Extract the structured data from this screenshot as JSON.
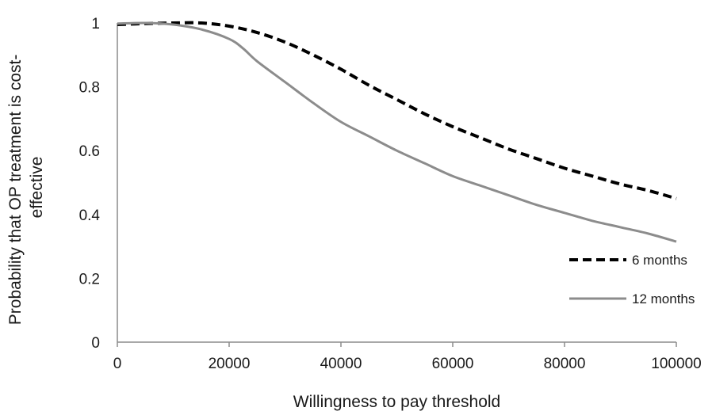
{
  "chart_data": {
    "type": "line",
    "title": "",
    "xlabel": "Willingness to pay threshold",
    "ylabel_lines": [
      "Probability that OP treatment is cost-",
      "effective"
    ],
    "xlim": [
      0,
      100000
    ],
    "ylim": [
      0,
      1
    ],
    "x_ticks": [
      0,
      20000,
      40000,
      60000,
      80000,
      100000
    ],
    "x_tick_labels": [
      "0",
      "20000",
      "40000",
      "60000",
      "80000",
      "100000"
    ],
    "y_ticks": [
      0,
      0.2,
      0.4,
      0.6,
      0.8,
      1
    ],
    "y_tick_labels": [
      "0",
      "0.2",
      "0.4",
      "0.6",
      "0.8",
      "1"
    ],
    "grid": false,
    "legend_position": "bottom-right",
    "series": [
      {
        "name": "6 months",
        "color": "#000000",
        "style": "dashed",
        "x": [
          0,
          5000,
          10000,
          15000,
          20000,
          25000,
          30000,
          35000,
          40000,
          45000,
          50000,
          55000,
          60000,
          65000,
          70000,
          75000,
          80000,
          85000,
          90000,
          95000,
          100000
        ],
        "y": [
          0.995,
          0.998,
          1.0,
          1.0,
          0.99,
          0.97,
          0.94,
          0.9,
          0.855,
          0.805,
          0.76,
          0.715,
          0.675,
          0.64,
          0.605,
          0.575,
          0.545,
          0.52,
          0.495,
          0.475,
          0.45
        ]
      },
      {
        "name": "12 months",
        "color": "#8c8c8c",
        "style": "solid",
        "x": [
          0,
          5000,
          10000,
          15000,
          20000,
          22500,
          25000,
          30000,
          35000,
          40000,
          45000,
          50000,
          55000,
          60000,
          65000,
          70000,
          75000,
          80000,
          85000,
          90000,
          95000,
          100000
        ],
        "y": [
          0.998,
          1.0,
          0.995,
          0.98,
          0.95,
          0.92,
          0.88,
          0.815,
          0.75,
          0.69,
          0.645,
          0.6,
          0.56,
          0.52,
          0.49,
          0.46,
          0.43,
          0.405,
          0.38,
          0.36,
          0.34,
          0.315
        ]
      }
    ]
  }
}
